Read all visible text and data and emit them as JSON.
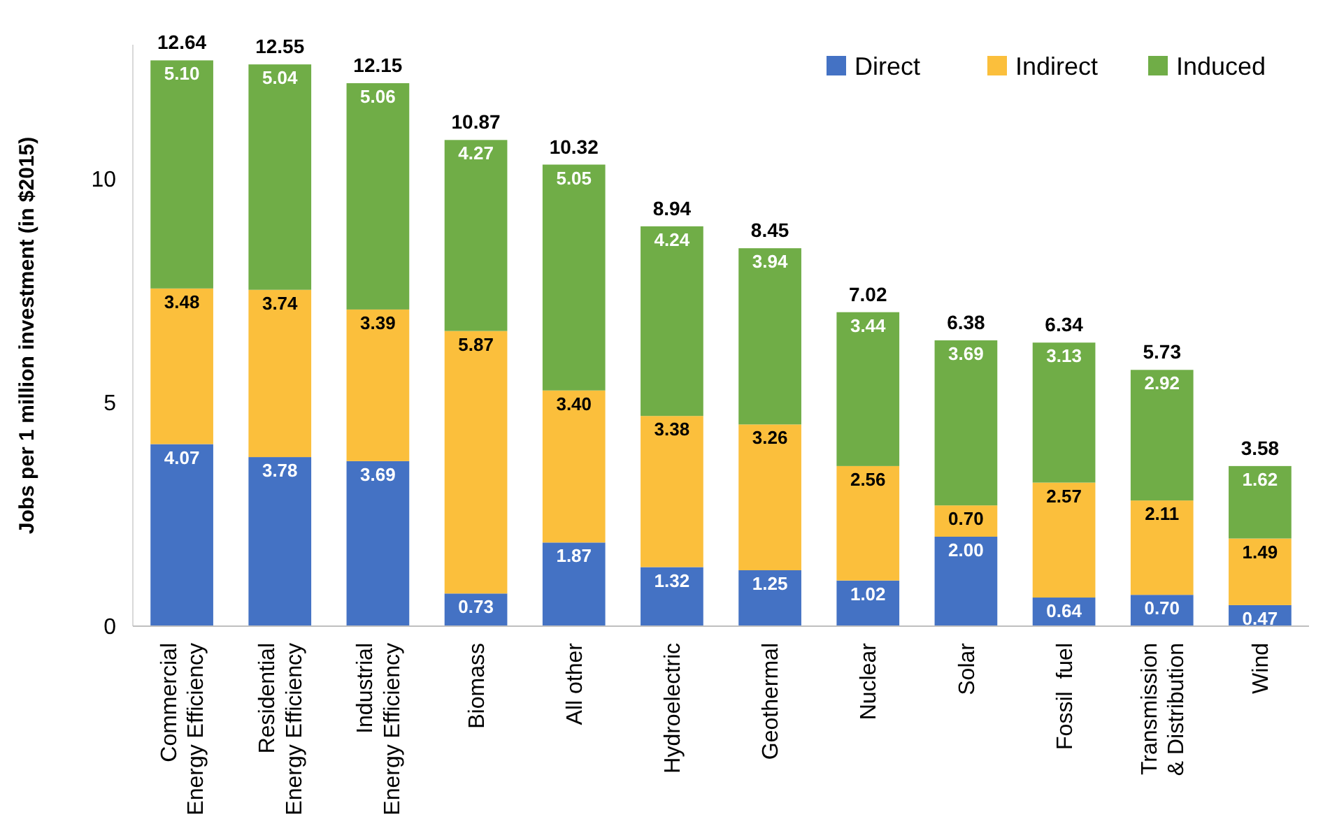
{
  "chart_data": {
    "type": "bar",
    "stacked": true,
    "ylabel": "Jobs per 1 million investment (in $2015)",
    "categories": [
      "Commercial\nEnergy Efficiency",
      "Residential\nEnergy Efficiency",
      "Industrial\nEnergy Efficiency",
      "Biomass",
      "All other",
      "Hydroelectric",
      "Geothermal",
      "Nuclear",
      "Solar",
      "Fossil  fuel",
      "Transmission\n& Distribution",
      "Wind"
    ],
    "series": [
      {
        "name": "Direct",
        "color": "#4472c4",
        "values": [
          4.07,
          3.78,
          3.69,
          0.73,
          1.87,
          1.32,
          1.25,
          1.02,
          2.0,
          0.64,
          0.7,
          0.47
        ],
        "value_labels": [
          "4.07",
          "3.78",
          "3.69",
          "0.73",
          "1.87",
          "1.32",
          "1.25",
          "1.02",
          "2.00",
          "0.64",
          "0.70",
          "0.47"
        ]
      },
      {
        "name": "Indirect",
        "color": "#fbbf3c",
        "values": [
          3.48,
          3.74,
          3.39,
          5.87,
          3.4,
          3.38,
          3.26,
          2.56,
          0.7,
          2.57,
          2.11,
          1.49
        ],
        "value_labels": [
          "3.48",
          "3.74",
          "3.39",
          "5.87",
          "3.40",
          "3.38",
          "3.26",
          "2.56",
          "0.70",
          "2.57",
          "2.11",
          "1.49"
        ]
      },
      {
        "name": "Induced",
        "color": "#70ad47",
        "values": [
          5.1,
          5.04,
          5.06,
          4.27,
          5.05,
          4.24,
          3.94,
          3.44,
          3.69,
          3.13,
          2.92,
          1.62
        ],
        "value_labels": [
          "5.10",
          "5.04",
          "5.06",
          "4.27",
          "5.05",
          "4.24",
          "3.94",
          "3.44",
          "3.69",
          "3.13",
          "2.92",
          "1.62"
        ]
      }
    ],
    "totals": [
      "12.64",
      "12.55",
      "12.15",
      "10.87",
      "10.32",
      "8.94",
      "8.45",
      "7.02",
      "6.38",
      "6.34",
      "5.73",
      "3.58"
    ],
    "ylim": [
      0,
      13
    ],
    "yticks": [
      0,
      5,
      10
    ],
    "grid": false,
    "legend": "top right"
  }
}
